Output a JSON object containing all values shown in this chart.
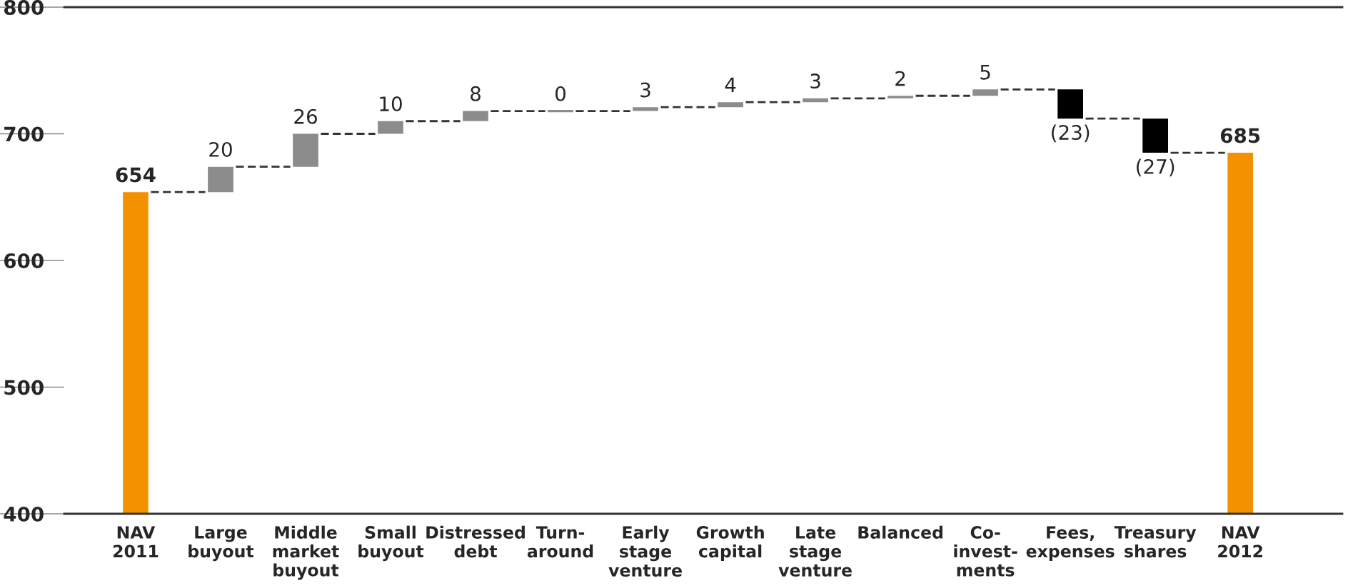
{
  "chart_data": {
    "type": "bar",
    "categories": [
      "NAV\n2011",
      "Large\nbuyout",
      "Middle\nmarket\nbuyout",
      "Small\nbuyout",
      "Distressed\ndebt",
      "Turn-\naround",
      "Early\nstage\nventure",
      "Growth\ncapital",
      "Late\nstage\nventure",
      "Balanced",
      "Co-\ninvest-\nments",
      "Fees,\nexpenses",
      "Treasury\nshares",
      "NAV\n2012"
    ],
    "values": [
      654,
      20,
      26,
      10,
      8,
      0,
      3,
      4,
      3,
      2,
      5,
      -23,
      -27,
      685
    ],
    "base": [
      null,
      654,
      674,
      700,
      710,
      718,
      718,
      721,
      725,
      728,
      730,
      735,
      712,
      null
    ],
    "colors": [
      "#f39200",
      "#8c8c8c",
      "#8c8c8c",
      "#8c8c8c",
      "#8c8c8c",
      "#8c8c8c",
      "#8c8c8c",
      "#8c8c8c",
      "#8c8c8c",
      "#8c8c8c",
      "#8c8c8c",
      "#000000",
      "#000000",
      "#f39200"
    ],
    "value_labels": [
      "654",
      "20",
      "26",
      "10",
      "8",
      "0",
      "3",
      "4",
      "3",
      "2",
      "5",
      "(23)",
      "(27)",
      "685"
    ],
    "ylim": [
      400,
      800
    ],
    "yticks": [
      400,
      500,
      600,
      700,
      800
    ],
    "grid": false,
    "legend": false
  }
}
